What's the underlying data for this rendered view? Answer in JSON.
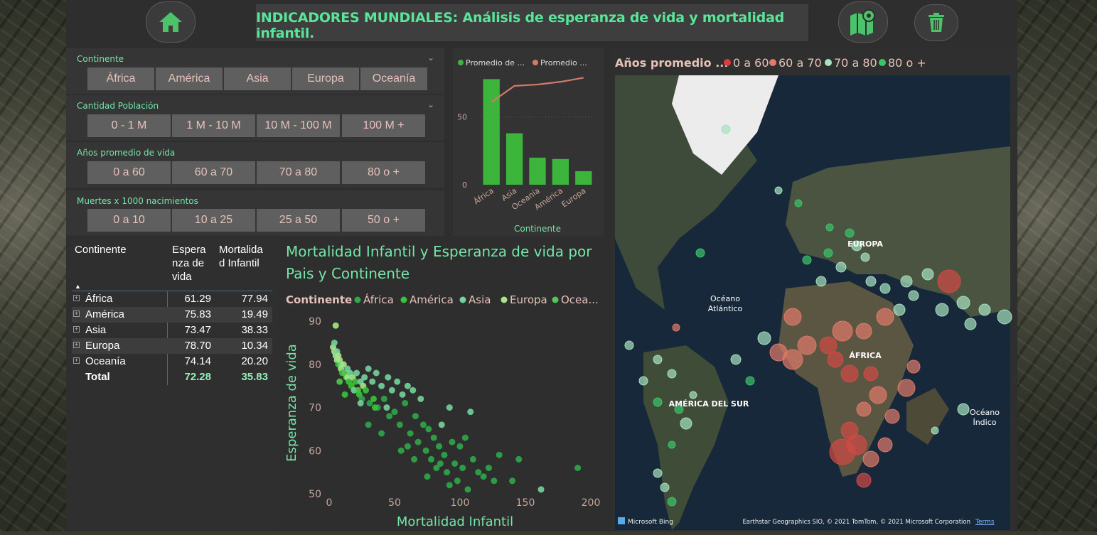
{
  "header": {
    "title": "INDICADORES MUNDIALES: Análisis de esperanza de vida y mortalidad infantil."
  },
  "slicers": {
    "continente": {
      "label": "Continente",
      "options": [
        "África",
        "América",
        "Asia",
        "Europa",
        "Oceanía"
      ]
    },
    "poblacion": {
      "label": "Cantidad Población",
      "options": [
        "0 - 1 M",
        "1 M - 10 M",
        "10 M - 100 M",
        "100 M +"
      ]
    },
    "vida": {
      "label": "Años promedio de vida",
      "options": [
        "0 a 60",
        "60 a 70",
        "70 a 80",
        "80 o +"
      ]
    },
    "muertes": {
      "label": "Muertes x 1000 nacimientos",
      "options": [
        "0 a 10",
        "10 a 25",
        "25 a 50",
        "50 o +"
      ]
    }
  },
  "table": {
    "headers": {
      "continente": "Continente",
      "esperanza": "Espera nza de vida",
      "mortalidad": "Mortalida d Infantil"
    },
    "rows": [
      {
        "name": "África",
        "esperanza": "61.29",
        "mortalidad": "77.94"
      },
      {
        "name": "América",
        "esperanza": "75.83",
        "mortalidad": "19.49"
      },
      {
        "name": "Asia",
        "esperanza": "73.47",
        "mortalidad": "38.33"
      },
      {
        "name": "Europa",
        "esperanza": "78.70",
        "mortalidad": "10.34"
      },
      {
        "name": "Oceanía",
        "esperanza": "74.14",
        "mortalidad": "20.20"
      }
    ],
    "total": {
      "name": "Total",
      "esperanza": "72.28",
      "mortalidad": "35.83"
    }
  },
  "chart_data": [
    {
      "type": "bar",
      "legend": [
        "Promedio de ...",
        "Promedio ..."
      ],
      "categories": [
        "África",
        "Asia",
        "Oceanía",
        "América",
        "Europa"
      ],
      "series": [
        {
          "name": "Promedio de ...",
          "kind": "bar",
          "values": [
            78,
            38,
            20,
            19,
            10
          ]
        },
        {
          "name": "Promedio ...",
          "kind": "line",
          "values": [
            61,
            73,
            74,
            76,
            79
          ]
        }
      ],
      "xlabel": "Continente",
      "ylim": [
        0,
        85
      ],
      "yticks": [
        0,
        50
      ],
      "colors": {
        "bar": "#3db53d",
        "line": "#d47a6a"
      }
    },
    {
      "type": "scatter",
      "title": "Mortalidad Infantil y Esperanza de vida por Pais y Continente",
      "legend_title": "Continente",
      "legend": [
        "África",
        "América",
        "Asia",
        "Europa",
        "Ocea..."
      ],
      "xlabel": "Mortalidad Infantil",
      "ylabel": "Esperanza de vida",
      "xlim": [
        0,
        200
      ],
      "ylim": [
        50,
        92
      ],
      "xticks": [
        0,
        50,
        100,
        150,
        200
      ],
      "yticks": [
        50,
        60,
        70,
        80,
        90
      ],
      "colors": {
        "África": "#2fa84a",
        "América": "#38c438",
        "Asia": "#74d49b",
        "Europa": "#a8e68a",
        "Oceanía": "#4fc94f"
      },
      "points": [
        {
          "group": "Europa",
          "x": 5,
          "y": 89
        },
        {
          "group": "Europa",
          "x": 3,
          "y": 84
        },
        {
          "group": "Europa",
          "x": 4,
          "y": 83
        },
        {
          "group": "Asia",
          "x": 4,
          "y": 85
        },
        {
          "group": "Europa",
          "x": 5,
          "y": 82
        },
        {
          "group": "Asia",
          "x": 6,
          "y": 83
        },
        {
          "group": "Europa",
          "x": 6,
          "y": 81
        },
        {
          "group": "Europa",
          "x": 7,
          "y": 82
        },
        {
          "group": "América",
          "x": 7,
          "y": 80
        },
        {
          "group": "Europa",
          "x": 8,
          "y": 81
        },
        {
          "group": "Asia",
          "x": 9,
          "y": 80
        },
        {
          "group": "Europa",
          "x": 9,
          "y": 79
        },
        {
          "group": "América",
          "x": 10,
          "y": 78
        },
        {
          "group": "Europa",
          "x": 11,
          "y": 80
        },
        {
          "group": "Oceanía",
          "x": 12,
          "y": 78
        },
        {
          "group": "América",
          "x": 13,
          "y": 77
        },
        {
          "group": "Asia",
          "x": 14,
          "y": 79
        },
        {
          "group": "Europa",
          "x": 14,
          "y": 77
        },
        {
          "group": "América",
          "x": 15,
          "y": 76
        },
        {
          "group": "Asia",
          "x": 16,
          "y": 78
        },
        {
          "group": "América",
          "x": 17,
          "y": 75
        },
        {
          "group": "Europa",
          "x": 18,
          "y": 77
        },
        {
          "group": "Asia",
          "x": 19,
          "y": 74
        },
        {
          "group": "América",
          "x": 20,
          "y": 76
        },
        {
          "group": "Asia",
          "x": 21,
          "y": 78
        },
        {
          "group": "Oceanía",
          "x": 22,
          "y": 74
        },
        {
          "group": "América",
          "x": 23,
          "y": 73
        },
        {
          "group": "Asia",
          "x": 24,
          "y": 76
        },
        {
          "group": "África",
          "x": 25,
          "y": 72
        },
        {
          "group": "Europa",
          "x": 26,
          "y": 75
        },
        {
          "group": "Asia",
          "x": 27,
          "y": 77
        },
        {
          "group": "América",
          "x": 28,
          "y": 74
        },
        {
          "group": "Asia",
          "x": 30,
          "y": 79
        },
        {
          "group": "África",
          "x": 31,
          "y": 71
        },
        {
          "group": "Asia",
          "x": 33,
          "y": 76
        },
        {
          "group": "América",
          "x": 34,
          "y": 72
        },
        {
          "group": "Asia",
          "x": 36,
          "y": 78
        },
        {
          "group": "África",
          "x": 37,
          "y": 70
        },
        {
          "group": "Asia",
          "x": 40,
          "y": 75
        },
        {
          "group": "África",
          "x": 42,
          "y": 72
        },
        {
          "group": "Asia",
          "x": 45,
          "y": 77
        },
        {
          "group": "África",
          "x": 46,
          "y": 68
        },
        {
          "group": "Asia",
          "x": 48,
          "y": 74
        },
        {
          "group": "África",
          "x": 50,
          "y": 69
        },
        {
          "group": "Asia",
          "x": 52,
          "y": 76
        },
        {
          "group": "África",
          "x": 54,
          "y": 66
        },
        {
          "group": "Asia",
          "x": 56,
          "y": 73
        },
        {
          "group": "África",
          "x": 58,
          "y": 71
        },
        {
          "group": "Asia",
          "x": 60,
          "y": 75
        },
        {
          "group": "África",
          "x": 62,
          "y": 64
        },
        {
          "group": "Asia",
          "x": 64,
          "y": 74
        },
        {
          "group": "África",
          "x": 66,
          "y": 68
        },
        {
          "group": "África",
          "x": 68,
          "y": 62
        },
        {
          "group": "Asia",
          "x": 70,
          "y": 72
        },
        {
          "group": "África",
          "x": 72,
          "y": 66
        },
        {
          "group": "África",
          "x": 74,
          "y": 60
        },
        {
          "group": "África",
          "x": 76,
          "y": 65
        },
        {
          "group": "África",
          "x": 78,
          "y": 58
        },
        {
          "group": "África",
          "x": 80,
          "y": 63
        },
        {
          "group": "África",
          "x": 82,
          "y": 56
        },
        {
          "group": "África",
          "x": 84,
          "y": 61
        },
        {
          "group": "Asia",
          "x": 86,
          "y": 66
        },
        {
          "group": "África",
          "x": 88,
          "y": 59
        },
        {
          "group": "África",
          "x": 90,
          "y": 55
        },
        {
          "group": "Asia",
          "x": 92,
          "y": 70
        },
        {
          "group": "África",
          "x": 94,
          "y": 62
        },
        {
          "group": "África",
          "x": 96,
          "y": 57
        },
        {
          "group": "África",
          "x": 98,
          "y": 53
        },
        {
          "group": "África",
          "x": 100,
          "y": 61
        },
        {
          "group": "África",
          "x": 102,
          "y": 56
        },
        {
          "group": "África",
          "x": 104,
          "y": 63
        },
        {
          "group": "África",
          "x": 106,
          "y": 51
        },
        {
          "group": "Asia",
          "x": 108,
          "y": 69
        },
        {
          "group": "África",
          "x": 110,
          "y": 58
        },
        {
          "group": "África",
          "x": 114,
          "y": 55
        },
        {
          "group": "África",
          "x": 118,
          "y": 54
        },
        {
          "group": "África",
          "x": 122,
          "y": 56
        },
        {
          "group": "África",
          "x": 126,
          "y": 53
        },
        {
          "group": "África",
          "x": 130,
          "y": 59
        },
        {
          "group": "África",
          "x": 140,
          "y": 53
        },
        {
          "group": "África",
          "x": 145,
          "y": 58
        },
        {
          "group": "Asia",
          "x": 162,
          "y": 51
        },
        {
          "group": "África",
          "x": 190,
          "y": 56
        },
        {
          "group": "América",
          "x": 35,
          "y": 70
        },
        {
          "group": "África",
          "x": 55,
          "y": 60
        },
        {
          "group": "África",
          "x": 65,
          "y": 58
        },
        {
          "group": "África",
          "x": 75,
          "y": 54
        },
        {
          "group": "África",
          "x": 85,
          "y": 57
        },
        {
          "group": "África",
          "x": 92,
          "y": 52
        },
        {
          "group": "América",
          "x": 12,
          "y": 73
        },
        {
          "group": "Oceanía",
          "x": 8,
          "y": 76
        },
        {
          "group": "África",
          "x": 30,
          "y": 66
        },
        {
          "group": "África",
          "x": 40,
          "y": 64
        },
        {
          "group": "África",
          "x": 60,
          "y": 61
        },
        {
          "group": "Asia",
          "x": 24,
          "y": 71
        },
        {
          "group": "Asia",
          "x": 44,
          "y": 70
        }
      ]
    }
  ],
  "map": {
    "legend_title": "Años promedio ...",
    "legend_items": [
      {
        "label": "0 a 60",
        "color": "#e03a3a"
      },
      {
        "label": "60 a 70",
        "color": "#e07a6a"
      },
      {
        "label": "70 a 80",
        "color": "#a6e3c0"
      },
      {
        "label": "80 o +",
        "color": "#3cc46a"
      }
    ],
    "labels": {
      "europa": "EUROPA",
      "atlantico": "Océano Atlántico",
      "africa": "ÁFRICA",
      "america_sur": "AMÉRICA DEL SUR",
      "indico": "Océano Índico"
    },
    "bing": "Microsoft Bing",
    "attribution": "Earthstar Geographics SIO, © 2021 TomTom, © 2021 Microsoft Corporation",
    "terms": "Terms"
  }
}
